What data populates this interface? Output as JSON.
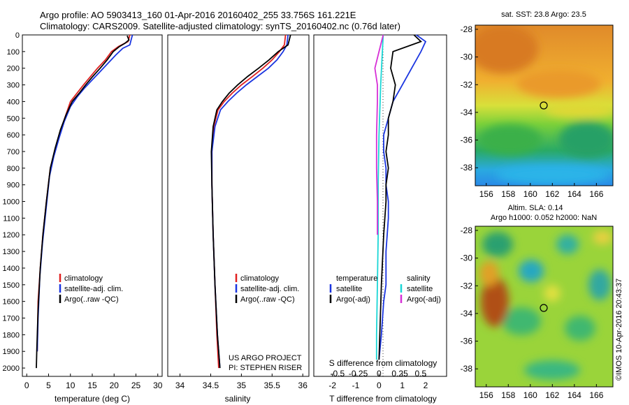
{
  "header": {
    "line1": "Argo profile: AO 5903413_160 01-Apr-2016 20160402_255 33.756S 161.221E",
    "line2": "Climatology: CARS2009. Satellite-adjusted climatology: synTS_20160402.nc (0.76d later)"
  },
  "side_credit": "©IMOS 10-Apr-2016 20:43:37",
  "chart_data": [
    {
      "type": "line",
      "xlabel": "temperature (deg C)",
      "ylim": [
        2050,
        0
      ],
      "xlim": [
        -1,
        31
      ],
      "yticks": [
        0,
        100,
        200,
        300,
        400,
        500,
        600,
        700,
        800,
        900,
        1000,
        1100,
        1200,
        1300,
        1400,
        1500,
        1600,
        1700,
        1800,
        1900,
        2000
      ],
      "xticks": [
        0,
        5,
        10,
        15,
        20,
        25,
        30
      ],
      "legend": [
        "climatology",
        "satellite-adj. clim.",
        "Argo(..raw -QC)"
      ],
      "legend_position": "lower-center",
      "series": [
        {
          "name": "climatology",
          "color": "#e02020",
          "x": [
            23.6,
            23.2,
            21.0,
            19.4,
            18.0,
            16.2,
            14.6,
            13.0,
            11.5,
            10.0,
            8.7,
            7.5,
            6.4,
            5.4,
            4.5,
            3.7,
            3.1,
            2.6,
            2.4
          ],
          "y": [
            0,
            40,
            70,
            100,
            150,
            200,
            250,
            300,
            350,
            400,
            500,
            600,
            700,
            800,
            1000,
            1200,
            1400,
            1600,
            1900
          ]
        },
        {
          "name": "satellite-adj. clim.",
          "color": "#1a35e0",
          "x": [
            24.2,
            23.8,
            23.6,
            22.0,
            20.4,
            18.6,
            16.8,
            15.0,
            13.2,
            11.6,
            10.0,
            8.6,
            7.4,
            6.2,
            5.2,
            4.4,
            3.6,
            3.0,
            2.6,
            2.4
          ],
          "y": [
            0,
            40,
            60,
            80,
            120,
            170,
            220,
            270,
            320,
            370,
            430,
            520,
            620,
            730,
            850,
            1050,
            1250,
            1450,
            1700,
            1900
          ]
        },
        {
          "name": "Argo(..raw -QC)",
          "color": "#000000",
          "x": [
            23.0,
            23.4,
            22.5,
            21.2,
            19.8,
            18.4,
            16.8,
            15.1,
            13.5,
            12.0,
            10.4,
            9.0,
            7.7,
            6.5,
            5.4,
            4.5,
            3.7,
            3.1,
            2.6,
            2.3,
            2.2
          ],
          "y": [
            5,
            30,
            50,
            70,
            100,
            150,
            200,
            250,
            300,
            350,
            400,
            480,
            570,
            680,
            800,
            1000,
            1200,
            1400,
            1650,
            1900,
            2000
          ]
        }
      ]
    },
    {
      "type": "line",
      "xlabel": "salinity",
      "ylim": [
        2050,
        0
      ],
      "xlim": [
        33.8,
        36.1
      ],
      "xticks": [
        34,
        34.5,
        35,
        35.5,
        36
      ],
      "legend": [
        "climatology",
        "satellite-adj. clim.",
        "Argo(..raw -QC)"
      ],
      "legend_position": "lower-right",
      "annotations": [
        "US ARGO PROJECT",
        "PI: STEPHEN RISER"
      ],
      "series": [
        {
          "name": "climatology",
          "color": "#e02020",
          "x": [
            35.72,
            35.7,
            35.62,
            35.5,
            35.35,
            35.18,
            35.0,
            34.85,
            34.72,
            34.62,
            34.55,
            34.52,
            34.52,
            34.54,
            34.57,
            34.6,
            34.63
          ],
          "y": [
            0,
            60,
            100,
            150,
            200,
            250,
            300,
            350,
            400,
            450,
            550,
            700,
            900,
            1200,
            1500,
            1800,
            2000
          ]
        },
        {
          "name": "satellite-adj. clim.",
          "color": "#1a35e0",
          "x": [
            35.76,
            35.74,
            35.68,
            35.58,
            35.44,
            35.26,
            35.08,
            34.92,
            34.78,
            34.66,
            34.57,
            34.52,
            34.52,
            34.54,
            34.57,
            34.61,
            34.65
          ],
          "y": [
            0,
            60,
            100,
            150,
            200,
            250,
            300,
            350,
            400,
            450,
            550,
            700,
            900,
            1200,
            1500,
            1800,
            2000
          ]
        },
        {
          "name": "Argo(..raw -QC)",
          "color": "#000000",
          "x": [
            35.8,
            35.76,
            35.6,
            35.45,
            35.28,
            35.1,
            34.94,
            34.8,
            34.69,
            34.6,
            34.54,
            34.51,
            34.52,
            34.54,
            34.57,
            34.61,
            34.65
          ],
          "y": [
            0,
            60,
            100,
            150,
            200,
            250,
            300,
            350,
            400,
            450,
            550,
            700,
            900,
            1200,
            1500,
            1800,
            2000
          ]
        }
      ]
    },
    {
      "type": "line",
      "xlabel": "T difference from climatology",
      "top_axis_label": "S difference from climatology",
      "ylim": [
        2050,
        0
      ],
      "xlim_T": [
        -2.8,
        2.9
      ],
      "xticks_T": [
        -2,
        -1,
        0,
        1,
        2
      ],
      "xticks_S": [
        -0.5,
        -0.25,
        0,
        0.25,
        0.5
      ],
      "legend_temperature_title": "temperature",
      "legend_salinity_title": "salinity",
      "legend": [
        "satellite",
        "Argo(-adj)",
        "satellite",
        "Argo(-adj)"
      ],
      "legend_position": "lower-center",
      "series": [
        {
          "name": "satellite",
          "group": "temperature",
          "color": "#1a35e0",
          "x": [
            1.6,
            2.0,
            1.8,
            1.4,
            1.0,
            0.6,
            0.4,
            0.2,
            0.2,
            0.3,
            0.3,
            0.4,
            0.4,
            0.3,
            0.3,
            0.2,
            0.1,
            0.0
          ],
          "y": [
            0,
            40,
            100,
            200,
            300,
            400,
            500,
            600,
            700,
            800,
            900,
            1000,
            1100,
            1300,
            1500,
            1600,
            1800,
            1950
          ]
        },
        {
          "name": "Argo(-adj)",
          "group": "temperature",
          "color": "#000000",
          "x": [
            1.5,
            1.8,
            0.6,
            0.5,
            0.7,
            0.6,
            0.4,
            0.4,
            0.3,
            0.4,
            0.3,
            0.3,
            0.2,
            0.1,
            0.0
          ],
          "y": [
            0,
            40,
            100,
            200,
            300,
            400,
            500,
            600,
            700,
            800,
            900,
            1000,
            1200,
            1500,
            1950
          ]
        },
        {
          "name": "satellite",
          "group": "salinity",
          "color": "#1ad6d6",
          "x": [
            0.05,
            0.04,
            0.02,
            0.0,
            -0.01,
            -0.01,
            -0.02,
            -0.03,
            -0.03
          ],
          "y": [
            0,
            100,
            300,
            600,
            900,
            1200,
            1500,
            1800,
            1950
          ]
        },
        {
          "name": "Argo(-adj)",
          "group": "salinity",
          "color": "#d62fd6",
          "x": [
            0.05,
            0.0,
            -0.05,
            -0.02,
            -0.02,
            -0.03,
            -0.03,
            -0.02,
            -0.02
          ],
          "y": [
            0,
            100,
            200,
            300,
            400,
            600,
            800,
            1000,
            1200
          ]
        }
      ]
    },
    {
      "type": "heatmap",
      "title": "sat. SST: 23.8  Argo: 23.5",
      "xticks": [
        156,
        158,
        160,
        162,
        164,
        166
      ],
      "yticks": [
        -28,
        -30,
        -32,
        -34,
        -36,
        -38
      ],
      "xlim": [
        155,
        167.5
      ],
      "ylim": [
        -39.3,
        -27.7
      ],
      "marker": {
        "lon": 161.221,
        "lat": -33.756
      }
    },
    {
      "type": "heatmap",
      "title": "Altim. SLA: 0.14",
      "subtitle": "Argo h1000: 0.052 h2000: NaN",
      "xticks": [
        156,
        158,
        160,
        162,
        164,
        166
      ],
      "yticks": [
        -28,
        -30,
        -32,
        -34,
        -36,
        -38
      ],
      "xlim": [
        155,
        167.5
      ],
      "ylim": [
        -39.3,
        -27.7
      ],
      "marker": {
        "lon": 161.221,
        "lat": -33.756
      }
    }
  ]
}
